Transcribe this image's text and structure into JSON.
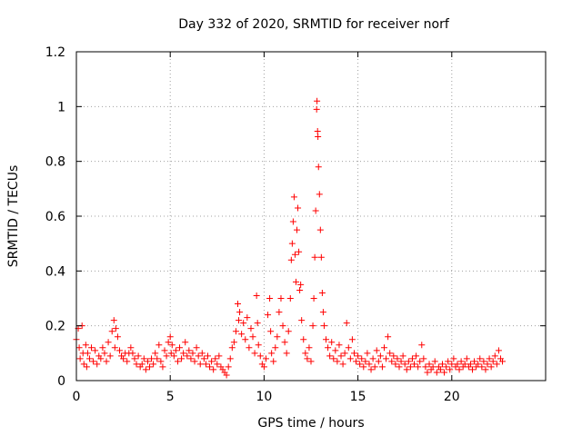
{
  "chart_data": {
    "type": "scatter",
    "title": "Day 332 of 2020, SRMTID for receiver norf",
    "xlabel": "GPS time / hours",
    "ylabel": "SRMTID / TECUs",
    "xlim": [
      0,
      25
    ],
    "ylim": [
      0,
      1.2
    ],
    "x_ticks": [
      0,
      5,
      10,
      15,
      20
    ],
    "x_tick_labels": [
      "0",
      "5",
      "10",
      "15",
      "20"
    ],
    "y_ticks": [
      0,
      0.2,
      0.4,
      0.6,
      0.8,
      1.0,
      1.2
    ],
    "y_tick_labels": [
      "0",
      "0.2",
      "0.4",
      "0.6",
      "0.8",
      "1",
      "1.2"
    ],
    "grid": true,
    "marker": "+",
    "color": "#ff0000",
    "series": [
      {
        "name": "SRMTID",
        "points": [
          [
            0.0,
            0.15
          ],
          [
            0.1,
            0.19
          ],
          [
            0.15,
            0.12
          ],
          [
            0.2,
            0.08
          ],
          [
            0.3,
            0.2
          ],
          [
            0.35,
            0.1
          ],
          [
            0.4,
            0.06
          ],
          [
            0.5,
            0.13
          ],
          [
            0.55,
            0.05
          ],
          [
            0.6,
            0.1
          ],
          [
            0.7,
            0.08
          ],
          [
            0.8,
            0.12
          ],
          [
            0.9,
            0.07
          ],
          [
            1.0,
            0.11
          ],
          [
            1.1,
            0.06
          ],
          [
            1.2,
            0.09
          ],
          [
            1.3,
            0.08
          ],
          [
            1.4,
            0.12
          ],
          [
            1.5,
            0.1
          ],
          [
            1.6,
            0.07
          ],
          [
            1.7,
            0.14
          ],
          [
            1.8,
            0.09
          ],
          [
            1.9,
            0.18
          ],
          [
            2.0,
            0.22
          ],
          [
            2.05,
            0.12
          ],
          [
            2.1,
            0.19
          ],
          [
            2.2,
            0.16
          ],
          [
            2.3,
            0.11
          ],
          [
            2.4,
            0.09
          ],
          [
            2.5,
            0.08
          ],
          [
            2.6,
            0.1
          ],
          [
            2.7,
            0.07
          ],
          [
            2.8,
            0.1
          ],
          [
            2.9,
            0.12
          ],
          [
            3.0,
            0.1
          ],
          [
            3.1,
            0.08
          ],
          [
            3.2,
            0.06
          ],
          [
            3.3,
            0.09
          ],
          [
            3.4,
            0.05
          ],
          [
            3.5,
            0.06
          ],
          [
            3.6,
            0.08
          ],
          [
            3.7,
            0.04
          ],
          [
            3.8,
            0.07
          ],
          [
            3.9,
            0.05
          ],
          [
            4.0,
            0.08
          ],
          [
            4.1,
            0.06
          ],
          [
            4.2,
            0.1
          ],
          [
            4.3,
            0.08
          ],
          [
            4.4,
            0.13
          ],
          [
            4.5,
            0.07
          ],
          [
            4.6,
            0.05
          ],
          [
            4.7,
            0.11
          ],
          [
            4.8,
            0.09
          ],
          [
            4.9,
            0.14
          ],
          [
            5.0,
            0.16
          ],
          [
            5.05,
            0.1
          ],
          [
            5.1,
            0.13
          ],
          [
            5.2,
            0.09
          ],
          [
            5.3,
            0.11
          ],
          [
            5.4,
            0.07
          ],
          [
            5.5,
            0.12
          ],
          [
            5.6,
            0.08
          ],
          [
            5.7,
            0.1
          ],
          [
            5.8,
            0.14
          ],
          [
            5.9,
            0.09
          ],
          [
            6.0,
            0.11
          ],
          [
            6.1,
            0.08
          ],
          [
            6.2,
            0.1
          ],
          [
            6.3,
            0.07
          ],
          [
            6.4,
            0.12
          ],
          [
            6.5,
            0.09
          ],
          [
            6.6,
            0.06
          ],
          [
            6.7,
            0.1
          ],
          [
            6.8,
            0.08
          ],
          [
            6.9,
            0.06
          ],
          [
            7.0,
            0.09
          ],
          [
            7.1,
            0.05
          ],
          [
            7.2,
            0.07
          ],
          [
            7.3,
            0.04
          ],
          [
            7.4,
            0.08
          ],
          [
            7.5,
            0.06
          ],
          [
            7.6,
            0.09
          ],
          [
            7.7,
            0.05
          ],
          [
            7.8,
            0.04
          ],
          [
            7.9,
            0.03
          ],
          [
            8.0,
            0.02
          ],
          [
            8.1,
            0.05
          ],
          [
            8.2,
            0.08
          ],
          [
            8.3,
            0.12
          ],
          [
            8.4,
            0.14
          ],
          [
            8.5,
            0.18
          ],
          [
            8.6,
            0.28
          ],
          [
            8.65,
            0.22
          ],
          [
            8.7,
            0.25
          ],
          [
            8.8,
            0.17
          ],
          [
            8.9,
            0.21
          ],
          [
            9.0,
            0.15
          ],
          [
            9.1,
            0.23
          ],
          [
            9.2,
            0.12
          ],
          [
            9.3,
            0.19
          ],
          [
            9.4,
            0.16
          ],
          [
            9.5,
            0.1
          ],
          [
            9.6,
            0.31
          ],
          [
            9.65,
            0.21
          ],
          [
            9.7,
            0.13
          ],
          [
            9.8,
            0.09
          ],
          [
            9.9,
            0.06
          ],
          [
            10.0,
            0.05
          ],
          [
            10.1,
            0.08
          ],
          [
            10.2,
            0.24
          ],
          [
            10.3,
            0.3
          ],
          [
            10.35,
            0.18
          ],
          [
            10.4,
            0.1
          ],
          [
            10.5,
            0.07
          ],
          [
            10.6,
            0.12
          ],
          [
            10.7,
            0.16
          ],
          [
            10.8,
            0.25
          ],
          [
            10.9,
            0.3
          ],
          [
            11.0,
            0.2
          ],
          [
            11.1,
            0.14
          ],
          [
            11.2,
            0.1
          ],
          [
            11.3,
            0.18
          ],
          [
            11.4,
            0.3
          ],
          [
            11.45,
            0.44
          ],
          [
            11.5,
            0.5
          ],
          [
            11.55,
            0.58
          ],
          [
            11.6,
            0.67
          ],
          [
            11.65,
            0.46
          ],
          [
            11.7,
            0.36
          ],
          [
            11.75,
            0.55
          ],
          [
            11.8,
            0.63
          ],
          [
            11.85,
            0.47
          ],
          [
            11.9,
            0.33
          ],
          [
            11.95,
            0.35
          ],
          [
            12.0,
            0.22
          ],
          [
            12.1,
            0.15
          ],
          [
            12.2,
            0.1
          ],
          [
            12.3,
            0.08
          ],
          [
            12.4,
            0.12
          ],
          [
            12.5,
            0.07
          ],
          [
            12.6,
            0.2
          ],
          [
            12.65,
            0.3
          ],
          [
            12.7,
            0.45
          ],
          [
            12.75,
            0.62
          ],
          [
            12.8,
            0.99
          ],
          [
            12.82,
            1.02
          ],
          [
            12.85,
            0.91
          ],
          [
            12.87,
            0.89
          ],
          [
            12.9,
            0.78
          ],
          [
            12.95,
            0.68
          ],
          [
            13.0,
            0.55
          ],
          [
            13.05,
            0.45
          ],
          [
            13.1,
            0.32
          ],
          [
            13.15,
            0.25
          ],
          [
            13.2,
            0.2
          ],
          [
            13.3,
            0.15
          ],
          [
            13.4,
            0.12
          ],
          [
            13.5,
            0.09
          ],
          [
            13.6,
            0.14
          ],
          [
            13.7,
            0.08
          ],
          [
            13.8,
            0.11
          ],
          [
            13.9,
            0.07
          ],
          [
            14.0,
            0.13
          ],
          [
            14.1,
            0.09
          ],
          [
            14.2,
            0.06
          ],
          [
            14.3,
            0.1
          ],
          [
            14.4,
            0.21
          ],
          [
            14.5,
            0.12
          ],
          [
            14.6,
            0.08
          ],
          [
            14.7,
            0.15
          ],
          [
            14.8,
            0.1
          ],
          [
            14.9,
            0.07
          ],
          [
            15.0,
            0.09
          ],
          [
            15.1,
            0.06
          ],
          [
            15.2,
            0.08
          ],
          [
            15.3,
            0.05
          ],
          [
            15.4,
            0.07
          ],
          [
            15.5,
            0.1
          ],
          [
            15.6,
            0.06
          ],
          [
            15.7,
            0.04
          ],
          [
            15.8,
            0.08
          ],
          [
            15.9,
            0.05
          ],
          [
            16.0,
            0.11
          ],
          [
            16.1,
            0.07
          ],
          [
            16.2,
            0.09
          ],
          [
            16.3,
            0.05
          ],
          [
            16.4,
            0.12
          ],
          [
            16.5,
            0.08
          ],
          [
            16.6,
            0.16
          ],
          [
            16.7,
            0.1
          ],
          [
            16.8,
            0.07
          ],
          [
            16.9,
            0.09
          ],
          [
            17.0,
            0.06
          ],
          [
            17.1,
            0.08
          ],
          [
            17.2,
            0.05
          ],
          [
            17.3,
            0.07
          ],
          [
            17.4,
            0.09
          ],
          [
            17.5,
            0.06
          ],
          [
            17.6,
            0.04
          ],
          [
            17.7,
            0.07
          ],
          [
            17.8,
            0.05
          ],
          [
            17.9,
            0.08
          ],
          [
            18.0,
            0.06
          ],
          [
            18.1,
            0.09
          ],
          [
            18.2,
            0.05
          ],
          [
            18.3,
            0.07
          ],
          [
            18.4,
            0.13
          ],
          [
            18.5,
            0.08
          ],
          [
            18.6,
            0.05
          ],
          [
            18.7,
            0.03
          ],
          [
            18.8,
            0.06
          ],
          [
            18.9,
            0.04
          ],
          [
            19.0,
            0.05
          ],
          [
            19.1,
            0.07
          ],
          [
            19.2,
            0.03
          ],
          [
            19.3,
            0.05
          ],
          [
            19.4,
            0.04
          ],
          [
            19.5,
            0.06
          ],
          [
            19.6,
            0.03
          ],
          [
            19.7,
            0.05
          ],
          [
            19.8,
            0.07
          ],
          [
            19.9,
            0.04
          ],
          [
            20.0,
            0.06
          ],
          [
            20.1,
            0.08
          ],
          [
            20.2,
            0.05
          ],
          [
            20.3,
            0.06
          ],
          [
            20.4,
            0.04
          ],
          [
            20.5,
            0.07
          ],
          [
            20.6,
            0.05
          ],
          [
            20.7,
            0.06
          ],
          [
            20.8,
            0.08
          ],
          [
            20.9,
            0.05
          ],
          [
            21.0,
            0.06
          ],
          [
            21.1,
            0.04
          ],
          [
            21.2,
            0.07
          ],
          [
            21.3,
            0.05
          ],
          [
            21.4,
            0.06
          ],
          [
            21.5,
            0.08
          ],
          [
            21.6,
            0.05
          ],
          [
            21.7,
            0.07
          ],
          [
            21.8,
            0.04
          ],
          [
            21.9,
            0.06
          ],
          [
            22.0,
            0.08
          ],
          [
            22.1,
            0.05
          ],
          [
            22.2,
            0.07
          ],
          [
            22.3,
            0.09
          ],
          [
            22.4,
            0.06
          ],
          [
            22.5,
            0.11
          ],
          [
            22.6,
            0.08
          ],
          [
            22.7,
            0.07
          ]
        ]
      }
    ]
  }
}
